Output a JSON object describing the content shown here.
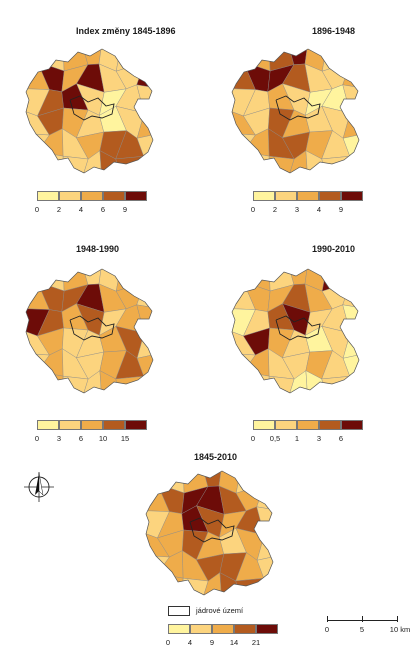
{
  "panels": [
    {
      "id": "p1",
      "title": "Index změny 1845-1896",
      "legend": [
        "0",
        "2",
        "4",
        "6",
        "9"
      ],
      "palette": [
        "#fff49e",
        "#fcd47e",
        "#efac4a",
        "#b35b1f",
        "#6d0c08"
      ]
    },
    {
      "id": "p2",
      "title": "1896-1948",
      "legend": [
        "0",
        "2",
        "3",
        "4",
        "9"
      ],
      "palette": [
        "#fff49e",
        "#fcd47e",
        "#efac4a",
        "#b35b1f",
        "#6d0c08"
      ]
    },
    {
      "id": "p3",
      "title": "1948-1990",
      "legend": [
        "0",
        "3",
        "6",
        "10",
        "15"
      ],
      "palette": [
        "#fff49e",
        "#fcd47e",
        "#efac4a",
        "#b35b1f",
        "#6d0c08"
      ]
    },
    {
      "id": "p4",
      "title": "1990-2010",
      "legend": [
        "0",
        "0,5",
        "1",
        "3",
        "6"
      ],
      "palette": [
        "#fff49e",
        "#fcd47e",
        "#efac4a",
        "#b35b1f",
        "#6d0c08"
      ]
    },
    {
      "id": "p5",
      "title": "1845-2010",
      "legend": [
        "0",
        "4",
        "9",
        "14",
        "21"
      ],
      "palette": [
        "#fff49e",
        "#fcd47e",
        "#efac4a",
        "#b35b1f",
        "#6d0c08"
      ]
    }
  ],
  "core_legend": "jádrové území",
  "scale_bar": {
    "labels": [
      "0",
      "5",
      "10 km"
    ]
  },
  "north_arrow": "compass-rose-icon"
}
